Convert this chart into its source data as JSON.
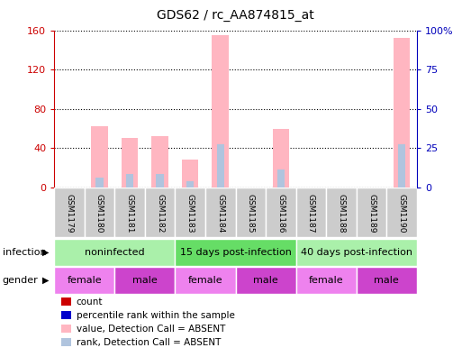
{
  "title": "GDS62 / rc_AA874815_at",
  "samples": [
    "GSM1179",
    "GSM1180",
    "GSM1181",
    "GSM1182",
    "GSM1183",
    "GSM1184",
    "GSM1185",
    "GSM1186",
    "GSM1187",
    "GSM1188",
    "GSM1189",
    "GSM1190"
  ],
  "pink_bars": [
    0,
    62,
    50,
    52,
    28,
    155,
    0,
    60,
    0,
    0,
    0,
    152
  ],
  "blue_bars": [
    0,
    10,
    14,
    14,
    6,
    44,
    0,
    18,
    0,
    0,
    0,
    44
  ],
  "ylim_left": [
    0,
    160
  ],
  "ylim_right": [
    0,
    100
  ],
  "yticks_left": [
    0,
    40,
    80,
    120,
    160
  ],
  "yticks_right": [
    0,
    25,
    50,
    75,
    100
  ],
  "ytick_labels_left": [
    "0",
    "40",
    "80",
    "120",
    "160"
  ],
  "ytick_labels_right": [
    "0",
    "25",
    "50",
    "75",
    "100%"
  ],
  "infection_groups": [
    {
      "label": "noninfected",
      "start": 0,
      "end": 4,
      "color": "#aaf0aa"
    },
    {
      "label": "15 days post-infection",
      "start": 4,
      "end": 8,
      "color": "#66dd66"
    },
    {
      "label": "40 days post-infection",
      "start": 8,
      "end": 12,
      "color": "#aaf0aa"
    }
  ],
  "gender_groups": [
    {
      "label": "female",
      "start": 0,
      "end": 2,
      "color": "#ee82ee"
    },
    {
      "label": "male",
      "start": 2,
      "end": 4,
      "color": "#cc44cc"
    },
    {
      "label": "female",
      "start": 4,
      "end": 6,
      "color": "#ee82ee"
    },
    {
      "label": "male",
      "start": 6,
      "end": 8,
      "color": "#cc44cc"
    },
    {
      "label": "female",
      "start": 8,
      "end": 10,
      "color": "#ee82ee"
    },
    {
      "label": "male",
      "start": 10,
      "end": 12,
      "color": "#cc44cc"
    }
  ],
  "legend_items": [
    {
      "color": "#cc0000",
      "label": "count"
    },
    {
      "color": "#0000cc",
      "label": "percentile rank within the sample"
    },
    {
      "color": "#ffb6c1",
      "label": "value, Detection Call = ABSENT"
    },
    {
      "color": "#b0c4de",
      "label": "rank, Detection Call = ABSENT"
    }
  ],
  "bar_width": 0.55,
  "left_axis_color": "#cc0000",
  "right_axis_color": "#0000bb",
  "sample_bg_color": "#cccccc",
  "chart_bg_color": "#ffffff",
  "title_fontsize": 10
}
